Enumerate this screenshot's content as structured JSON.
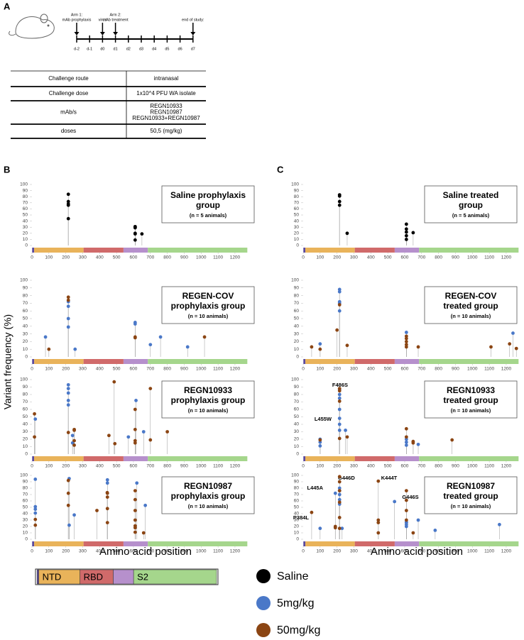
{
  "panel_labels": [
    "A",
    "B",
    "C"
  ],
  "timeline": {
    "days": [
      "d-2",
      "d-1",
      "d0",
      "d1",
      "d2",
      "d3",
      "d4",
      "d5",
      "d6",
      "d7"
    ],
    "events": [
      {
        "lines": [
          "Arm 1:",
          "mAb prophylaxis"
        ],
        "day": 0
      },
      {
        "lines": [
          "virus"
        ],
        "day": 2
      },
      {
        "lines": [
          "Arm 2:",
          "mAb treatment"
        ],
        "day": 3
      },
      {
        "lines": [
          "end of study:"
        ],
        "day": 9
      }
    ]
  },
  "table": {
    "rows": [
      [
        "Challenge route",
        [
          "intranasal"
        ]
      ],
      [
        "Challenge dose",
        [
          "1x10^4 PFU WA isolate"
        ]
      ],
      [
        "mAb/s",
        [
          "REGN10933",
          "REGN10987",
          "REGN10933+REGN10987"
        ]
      ],
      [
        "doses",
        [
          "50,5 (mg/kg)"
        ]
      ]
    ]
  },
  "domains": [
    {
      "start": 1,
      "end": 13,
      "color": "#5b4a9e"
    },
    {
      "label": "NTD",
      "start": 13,
      "end": 305,
      "color": "#e9b35a"
    },
    {
      "label": "RBD",
      "start": 305,
      "end": 541,
      "color": "#d06a6a"
    },
    {
      "start": 541,
      "end": 685,
      "color": "#b690cc"
    },
    {
      "label": "S2",
      "start": 685,
      "end": 1273,
      "color": "#a5d68c"
    }
  ],
  "chart_data": [
    {
      "type": "lollipop",
      "title": [
        "Saline prophylaxis",
        "group"
      ],
      "subtitle": "(n = 5 animals)",
      "ylabel": "Variant frequency (%)",
      "xlim": [
        0,
        1280
      ],
      "ylim": [
        0,
        100
      ],
      "xticks": [
        0,
        100,
        200,
        300,
        400,
        500,
        600,
        700,
        800,
        900,
        1000,
        1100,
        1200
      ],
      "yticks": [
        0,
        10,
        20,
        30,
        40,
        50,
        60,
        70,
        80,
        90,
        100
      ],
      "series": [
        {
          "name": "Saline",
          "color": "#000000",
          "x": [
            215,
            215,
            215,
            215,
            215,
            610,
            610,
            610,
            610,
            610,
            610,
            650
          ],
          "values": [
            84,
            72,
            68,
            66,
            44,
            31,
            30,
            29,
            20,
            19,
            9,
            19
          ]
        }
      ]
    },
    {
      "type": "lollipop",
      "title": [
        "REGEN-COV",
        "prophylaxis group"
      ],
      "subtitle": "(n = 10 animals)",
      "xlim": [
        0,
        1280
      ],
      "ylim": [
        0,
        100
      ],
      "xticks": [
        0,
        100,
        200,
        300,
        400,
        500,
        600,
        700,
        800,
        900,
        1000,
        1100,
        1200
      ],
      "yticks": [
        0,
        10,
        20,
        30,
        40,
        50,
        60,
        70,
        80,
        90,
        100
      ],
      "series": [
        {
          "name": "5mg/kg",
          "color": "#4a78c8",
          "x": [
            80,
            215,
            215,
            215,
            215,
            255,
            610,
            610,
            700,
            760,
            920
          ],
          "values": [
            26,
            72,
            66,
            50,
            39,
            10,
            45,
            43,
            16,
            26,
            13
          ]
        },
        {
          "name": "50mg/kg",
          "color": "#8b4513",
          "x": [
            100,
            215,
            215,
            610,
            610,
            1020
          ],
          "values": [
            10,
            78,
            74,
            26,
            25,
            26
          ]
        }
      ]
    },
    {
      "type": "lollipop",
      "title": [
        "REGN10933",
        "prophylaxis group"
      ],
      "subtitle": "(n = 10 animals)",
      "annotations": [
        "F486S",
        "L455W"
      ],
      "xlim": [
        0,
        1280
      ],
      "ylim": [
        0,
        100
      ],
      "xticks": [
        0,
        100,
        200,
        300,
        400,
        500,
        600,
        700,
        800,
        900,
        1000,
        1100,
        1200
      ],
      "yticks": [
        0,
        10,
        20,
        30,
        40,
        50,
        60,
        70,
        80,
        90,
        100
      ],
      "series": [
        {
          "color": "#4a78c8",
          "x": [
            20,
            215,
            215,
            215,
            215,
            215,
            240,
            240,
            570,
            615,
            660
          ],
          "values": [
            47,
            93,
            88,
            82,
            72,
            66,
            25,
            15,
            23,
            72,
            30
          ]
        },
        {
          "color": "#8b4513",
          "x": [
            15,
            15,
            215,
            250,
            250,
            250,
            250,
            455,
            486,
            490,
            610,
            610,
            610,
            610,
            700,
            700,
            800
          ],
          "values": [
            54,
            23,
            29,
            33,
            32,
            18,
            12,
            25,
            97,
            14,
            60,
            33,
            18,
            15,
            88,
            19,
            30
          ]
        }
      ]
    },
    {
      "type": "lollipop",
      "title": [
        "REGN10987",
        "prophylaxis group"
      ],
      "subtitle": "(n = 10 animals)",
      "annotations": [
        "L445A",
        "G446D",
        "P384L"
      ],
      "xlabel": "Amino acid position",
      "xlim": [
        0,
        1280
      ],
      "ylim": [
        0,
        100
      ],
      "xticks": [
        0,
        100,
        200,
        300,
        400,
        500,
        600,
        700,
        800,
        900,
        1000,
        1100,
        1200
      ],
      "yticks": [
        0,
        10,
        20,
        30,
        40,
        50,
        60,
        70,
        80,
        90,
        100
      ],
      "series": [
        {
          "color": "#4a78c8",
          "x": [
            20,
            20,
            20,
            20,
            220,
            220,
            250,
            446,
            446,
            620,
            670
          ],
          "values": [
            94,
            51,
            47,
            41,
            95,
            22,
            38,
            93,
            88,
            88,
            53
          ]
        },
        {
          "color": "#8b4513",
          "x": [
            20,
            20,
            215,
            215,
            215,
            384,
            445,
            446,
            446,
            446,
            446,
            610,
            610,
            610,
            610,
            610,
            610,
            610,
            660
          ],
          "values": [
            31,
            22,
            92,
            72,
            53,
            45,
            73,
            72,
            66,
            48,
            26,
            76,
            62,
            45,
            30,
            21,
            18,
            11,
            10
          ]
        }
      ]
    },
    {
      "type": "lollipop",
      "title": [
        "Saline treated",
        "group"
      ],
      "subtitle": "(n = 5 animals)",
      "xlim": [
        0,
        1280
      ],
      "ylim": [
        0,
        100
      ],
      "xticks": [
        0,
        100,
        200,
        300,
        400,
        500,
        600,
        700,
        800,
        900,
        1000,
        1100,
        1200
      ],
      "yticks": [
        0,
        10,
        20,
        30,
        40,
        50,
        60,
        70,
        80,
        90,
        100
      ],
      "series": [
        {
          "color": "#000000",
          "x": [
            215,
            215,
            215,
            215,
            260,
            610,
            610,
            610,
            610,
            610,
            650
          ],
          "values": [
            83,
            81,
            72,
            66,
            20,
            35,
            27,
            22,
            16,
            10,
            21
          ]
        }
      ]
    },
    {
      "type": "lollipop",
      "title": [
        "REGEN-COV",
        "treated group"
      ],
      "subtitle": "(n = 10 animals)",
      "xlim": [
        0,
        1280
      ],
      "ylim": [
        0,
        100
      ],
      "xticks": [
        0,
        100,
        200,
        300,
        400,
        500,
        600,
        700,
        800,
        900,
        1000,
        1100,
        1200
      ],
      "yticks": [
        0,
        10,
        20,
        30,
        40,
        50,
        60,
        70,
        80,
        90,
        100
      ],
      "series": [
        {
          "color": "#4a78c8",
          "x": [
            100,
            215,
            215,
            215,
            215,
            215,
            610,
            1240
          ],
          "values": [
            17,
            88,
            85,
            72,
            70,
            60,
            32,
            31
          ]
        },
        {
          "color": "#8b4513",
          "x": [
            50,
            100,
            200,
            215,
            260,
            610,
            610,
            610,
            610,
            610,
            680,
            1110,
            1220,
            1260
          ],
          "values": [
            13,
            10,
            35,
            68,
            15,
            27,
            24,
            20,
            16,
            13,
            13,
            13,
            17,
            11
          ]
        }
      ]
    },
    {
      "type": "lollipop",
      "title": [
        "REGN10933",
        "treated group"
      ],
      "subtitle": "(n = 10 animals)",
      "xlim": [
        0,
        1280
      ],
      "ylim": [
        0,
        100
      ],
      "xticks": [
        0,
        100,
        200,
        300,
        400,
        500,
        600,
        700,
        800,
        900,
        1000,
        1100,
        1200
      ],
      "yticks": [
        0,
        10,
        20,
        30,
        40,
        50,
        60,
        70,
        80,
        90,
        100
      ],
      "series": [
        {
          "color": "#4a78c8",
          "x": [
            100,
            100,
            100,
            215,
            215,
            215,
            215,
            215,
            215,
            215,
            250,
            610,
            610,
            610,
            680
          ],
          "values": [
            20,
            16,
            11,
            87,
            80,
            75,
            60,
            48,
            40,
            32,
            32,
            20,
            16,
            12,
            13
          ]
        },
        {
          "color": "#8b4513",
          "x": [
            100,
            215,
            215,
            215,
            215,
            260,
            610,
            610,
            650,
            650,
            880
          ],
          "values": [
            19,
            88,
            85,
            71,
            21,
            23,
            34,
            23,
            15,
            17,
            19
          ]
        }
      ]
    },
    {
      "type": "lollipop",
      "title": [
        "REGN10987",
        "treated group"
      ],
      "subtitle": "(n = 10 animals)",
      "annotations": [
        "K444T",
        "G446S"
      ],
      "xlabel": "Amino acid position",
      "xlim": [
        0,
        1280
      ],
      "ylim": [
        0,
        100
      ],
      "xticks": [
        0,
        100,
        200,
        300,
        400,
        500,
        600,
        700,
        800,
        900,
        1000,
        1100,
        1200
      ],
      "yticks": [
        0,
        10,
        20,
        30,
        40,
        50,
        60,
        70,
        80,
        90,
        100
      ],
      "series": [
        {
          "color": "#4a78c8",
          "x": [
            100,
            190,
            215,
            215,
            215,
            215,
            215,
            230,
            540,
            610,
            610,
            610,
            610,
            680,
            780,
            1160
          ],
          "values": [
            17,
            72,
            80,
            76,
            70,
            62,
            55,
            17,
            59,
            27,
            26,
            23,
            20,
            30,
            14,
            23
          ]
        },
        {
          "color": "#8b4513",
          "x": [
            50,
            190,
            190,
            215,
            215,
            215,
            215,
            215,
            215,
            444,
            444,
            444,
            444,
            610,
            610,
            610,
            610,
            650
          ],
          "values": [
            42,
            20,
            18,
            98,
            90,
            76,
            58,
            34,
            17,
            91,
            30,
            26,
            10,
            76,
            61,
            45,
            30,
            10
          ]
        }
      ]
    }
  ]
}
